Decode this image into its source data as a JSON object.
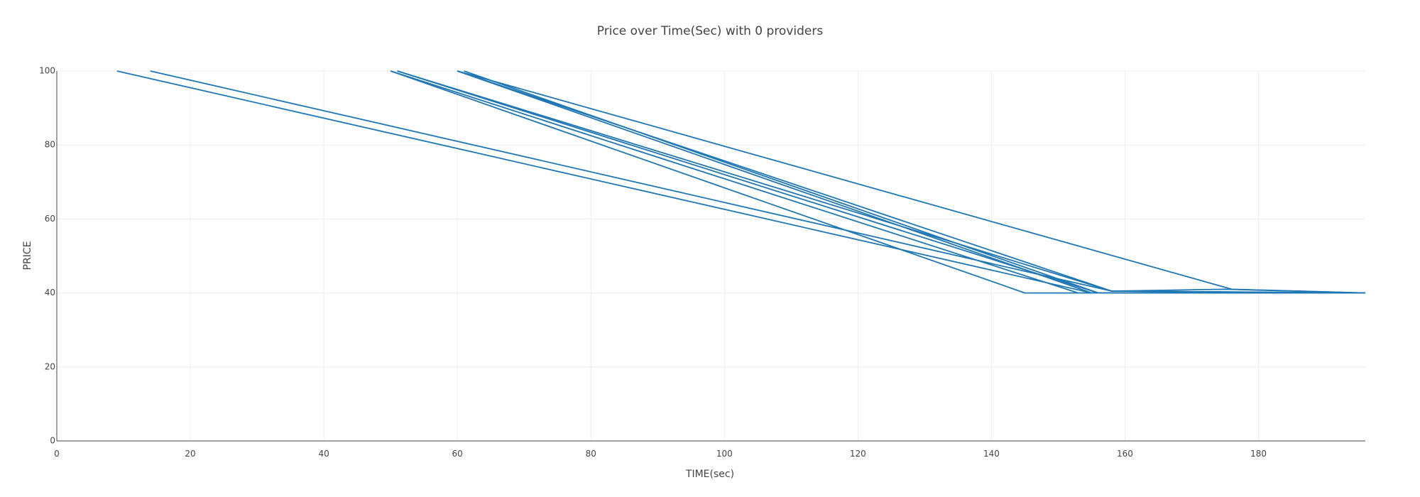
{
  "chart_data": {
    "type": "line",
    "title": "Price over Time(Sec) with 0 providers",
    "xlabel": "TIME(sec)",
    "ylabel": "PRICE",
    "xlim": [
      0,
      196
    ],
    "ylim": [
      0,
      100
    ],
    "xticks": [
      0,
      20,
      40,
      60,
      80,
      100,
      120,
      140,
      160,
      180
    ],
    "yticks": [
      0,
      20,
      40,
      60,
      80,
      100
    ],
    "grid": true,
    "legend": "none",
    "line_color": "#1f77b4",
    "series": [
      {
        "x": [
          9,
          155,
          196
        ],
        "y": [
          100,
          40,
          40
        ]
      },
      {
        "x": [
          14,
          158,
          196
        ],
        "y": [
          100,
          40.5,
          40
        ]
      },
      {
        "x": [
          50,
          145,
          196
        ],
        "y": [
          100,
          40,
          40
        ]
      },
      {
        "x": [
          50,
          153,
          196
        ],
        "y": [
          100,
          40,
          40
        ]
      },
      {
        "x": [
          51,
          156,
          196
        ],
        "y": [
          100,
          40,
          40
        ]
      },
      {
        "x": [
          51,
          158,
          175,
          196
        ],
        "y": [
          100,
          40.5,
          41,
          40
        ]
      },
      {
        "x": [
          60,
          155,
          196
        ],
        "y": [
          100,
          40,
          40
        ]
      },
      {
        "x": [
          60,
          158,
          196
        ],
        "y": [
          100,
          40.5,
          40
        ]
      },
      {
        "x": [
          61,
          156,
          196
        ],
        "y": [
          100,
          40,
          40
        ]
      },
      {
        "x": [
          60,
          176,
          196
        ],
        "y": [
          100,
          41,
          40
        ]
      }
    ]
  }
}
